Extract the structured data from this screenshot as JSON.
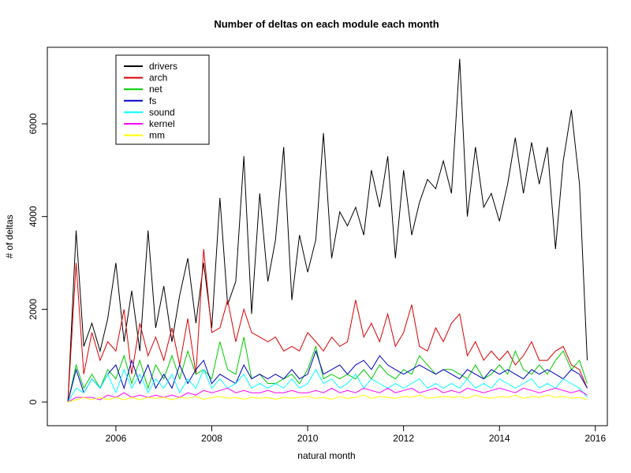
{
  "chart_data": {
    "type": "line",
    "title": "Number of deltas on each module each month",
    "x_label": "natural month",
    "y_label": "# of deltas",
    "x": [
      2005.0,
      2005.17,
      2005.33,
      2005.5,
      2005.67,
      2005.83,
      2006.0,
      2006.17,
      2006.33,
      2006.5,
      2006.67,
      2006.83,
      2007.0,
      2007.17,
      2007.33,
      2007.5,
      2007.67,
      2007.83,
      2008.0,
      2008.17,
      2008.33,
      2008.5,
      2008.67,
      2008.83,
      2009.0,
      2009.17,
      2009.33,
      2009.5,
      2009.67,
      2009.83,
      2010.0,
      2010.17,
      2010.33,
      2010.5,
      2010.67,
      2010.83,
      2011.0,
      2011.17,
      2011.33,
      2011.5,
      2011.67,
      2011.83,
      2012.0,
      2012.17,
      2012.33,
      2012.5,
      2012.67,
      2012.83,
      2013.0,
      2013.17,
      2013.33,
      2013.5,
      2013.67,
      2013.83,
      2014.0,
      2014.17,
      2014.33,
      2014.5,
      2014.67,
      2014.83,
      2015.0,
      2015.17,
      2015.33,
      2015.5,
      2015.67,
      2015.83
    ],
    "series": [
      {
        "name": "drivers",
        "color": "#000000",
        "values": [
          0,
          3700,
          1200,
          1700,
          1100,
          1800,
          3000,
          1300,
          2400,
          1100,
          3700,
          1600,
          2500,
          1300,
          2300,
          3100,
          1700,
          3000,
          1600,
          4400,
          2100,
          2600,
          5300,
          1900,
          4500,
          2600,
          3500,
          5500,
          2200,
          3600,
          2800,
          3500,
          5800,
          3100,
          4100,
          3800,
          4200,
          3600,
          5000,
          4200,
          5300,
          3100,
          5000,
          3600,
          4300,
          4800,
          4600,
          5200,
          4500,
          7400,
          4000,
          5500,
          4200,
          4500,
          3900,
          4700,
          5700,
          4500,
          5600,
          4700,
          5500,
          3300,
          5200,
          6300,
          4700,
          900
        ]
      },
      {
        "name": "arch",
        "color": "#dd0000",
        "values": [
          0,
          3000,
          600,
          1500,
          900,
          1300,
          1100,
          2000,
          600,
          1700,
          1000,
          1400,
          900,
          1600,
          800,
          1800,
          600,
          3300,
          1500,
          1600,
          2200,
          1300,
          2000,
          1500,
          1400,
          1300,
          1400,
          1100,
          1200,
          1100,
          1500,
          1300,
          1100,
          1400,
          1200,
          1300,
          2200,
          1400,
          1700,
          1300,
          1900,
          1200,
          1500,
          2100,
          1200,
          1100,
          1600,
          1300,
          1700,
          1900,
          1000,
          1300,
          900,
          1100,
          900,
          1100,
          800,
          1000,
          1300,
          900,
          900,
          1100,
          1200,
          800,
          700,
          300
        ]
      },
      {
        "name": "net",
        "color": "#00cc00",
        "values": [
          0,
          800,
          300,
          600,
          300,
          700,
          500,
          1000,
          400,
          900,
          300,
          800,
          500,
          1000,
          500,
          1100,
          600,
          700,
          500,
          1300,
          700,
          600,
          1400,
          500,
          600,
          400,
          400,
          500,
          600,
          400,
          700,
          1200,
          500,
          600,
          500,
          600,
          500,
          700,
          500,
          800,
          600,
          500,
          700,
          600,
          1000,
          800,
          600,
          700,
          700,
          600,
          500,
          800,
          500,
          600,
          800,
          600,
          1100,
          700,
          600,
          800,
          600,
          900,
          1100,
          700,
          900,
          400
        ]
      },
      {
        "name": "fs",
        "color": "#0000cc",
        "values": [
          0,
          700,
          200,
          500,
          300,
          600,
          800,
          300,
          900,
          400,
          800,
          300,
          600,
          300,
          800,
          400,
          700,
          900,
          400,
          600,
          500,
          400,
          800,
          500,
          600,
          500,
          600,
          500,
          700,
          500,
          600,
          1100,
          600,
          700,
          800,
          600,
          800,
          900,
          700,
          1000,
          800,
          700,
          600,
          700,
          800,
          700,
          600,
          700,
          600,
          500,
          700,
          600,
          500,
          700,
          600,
          700,
          600,
          500,
          700,
          600,
          700,
          600,
          500,
          700,
          600,
          300
        ]
      },
      {
        "name": "sound",
        "color": "#00ffff",
        "values": [
          0,
          300,
          200,
          500,
          300,
          600,
          200,
          700,
          300,
          600,
          200,
          500,
          300,
          600,
          200,
          500,
          300,
          700,
          300,
          500,
          300,
          400,
          600,
          300,
          400,
          300,
          400,
          300,
          500,
          300,
          400,
          700,
          400,
          500,
          300,
          400,
          600,
          300,
          500,
          400,
          300,
          400,
          300,
          400,
          500,
          300,
          400,
          300,
          400,
          300,
          500,
          300,
          400,
          300,
          500,
          400,
          300,
          400,
          500,
          300,
          400,
          300,
          500,
          400,
          300,
          100
        ]
      },
      {
        "name": "kernel",
        "color": "#ff00ff",
        "values": [
          0,
          100,
          100,
          100,
          50,
          150,
          100,
          200,
          100,
          150,
          100,
          150,
          100,
          150,
          100,
          200,
          150,
          250,
          200,
          250,
          300,
          200,
          250,
          200,
          200,
          250,
          200,
          200,
          250,
          200,
          200,
          250,
          200,
          300,
          200,
          250,
          200,
          300,
          250,
          200,
          300,
          200,
          250,
          300,
          200,
          250,
          300,
          200,
          250,
          200,
          300,
          250,
          200,
          250,
          300,
          250,
          200,
          300,
          250,
          200,
          250,
          300,
          250,
          200,
          250,
          150
        ]
      },
      {
        "name": "mm",
        "color": "#ffff00",
        "values": [
          0,
          50,
          100,
          50,
          100,
          50,
          100,
          50,
          100,
          50,
          100,
          80,
          100,
          50,
          100,
          80,
          120,
          60,
          100,
          120,
          80,
          100,
          60,
          100,
          80,
          100,
          60,
          100,
          80,
          100,
          120,
          80,
          100,
          60,
          120,
          80,
          100,
          150,
          80,
          120,
          100,
          80,
          120,
          100,
          150,
          80,
          100,
          120,
          100,
          120,
          80,
          150,
          100,
          80,
          120,
          100,
          150,
          80,
          120,
          100,
          150,
          100,
          120,
          80,
          100,
          50
        ]
      }
    ],
    "xlim": [
      2004.57,
      2016.25
    ],
    "xticks": [
      2006,
      2008,
      2010,
      2012,
      2014,
      2016
    ],
    "ylim": [
      -510,
      7650
    ],
    "yticks": [
      0,
      2000,
      4000,
      6000
    ],
    "legend": "top-left",
    "grid": false
  }
}
